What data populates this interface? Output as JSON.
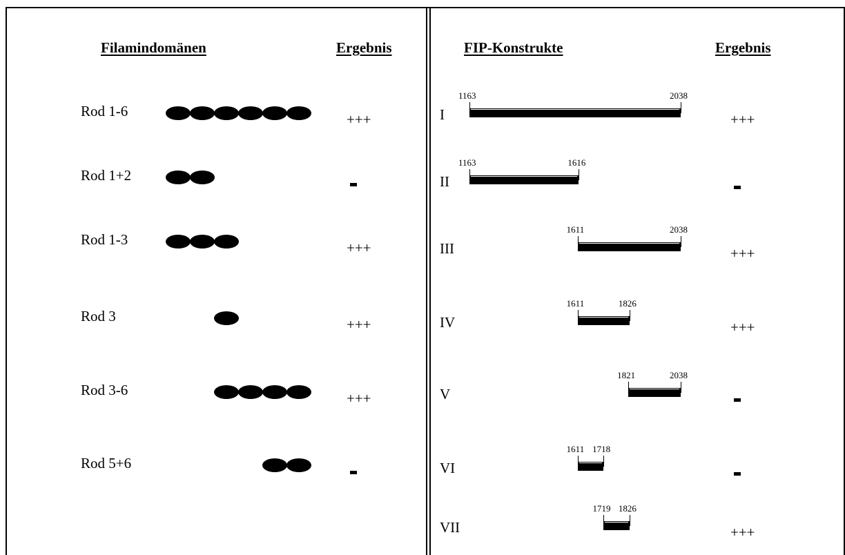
{
  "left_panel": {
    "header": "Filamindomänen",
    "result_header": "Ergebnis",
    "rows": [
      {
        "label": "Rod 1-6",
        "result": "+++",
        "domains": [
          1,
          2,
          3,
          4,
          5,
          6
        ]
      },
      {
        "label": "Rod 1+2",
        "result": "-",
        "domains": [
          1,
          2
        ]
      },
      {
        "label": "Rod 1-3",
        "result": "+++",
        "domains": [
          1,
          2,
          3
        ]
      },
      {
        "label": "Rod 3",
        "result": "+++",
        "domains": [
          3
        ]
      },
      {
        "label": "Rod 3-6",
        "result": "+++",
        "domains": [
          3,
          4,
          5,
          6
        ]
      },
      {
        "label": "Rod 5+6",
        "result": "-",
        "domains": [
          5,
          6
        ]
      }
    ]
  },
  "right_panel": {
    "header": "FIP-Konstrukte",
    "result_header": "Ergebnis",
    "rows": [
      {
        "label": "I",
        "start": 1163,
        "end": 2038,
        "result": "+++"
      },
      {
        "label": "II",
        "start": 1163,
        "end": 1616,
        "result": "-"
      },
      {
        "label": "III",
        "start": 1611,
        "end": 2038,
        "result": "+++"
      },
      {
        "label": "IV",
        "start": 1611,
        "end": 1826,
        "result": "+++"
      },
      {
        "label": "V",
        "start": 1821,
        "end": 2038,
        "result": "-"
      },
      {
        "label": "VI",
        "start": 1611,
        "end": 1718,
        "result": "-"
      },
      {
        "label": "VII",
        "start": 1719,
        "end": 1826,
        "result": "+++"
      }
    ]
  }
}
